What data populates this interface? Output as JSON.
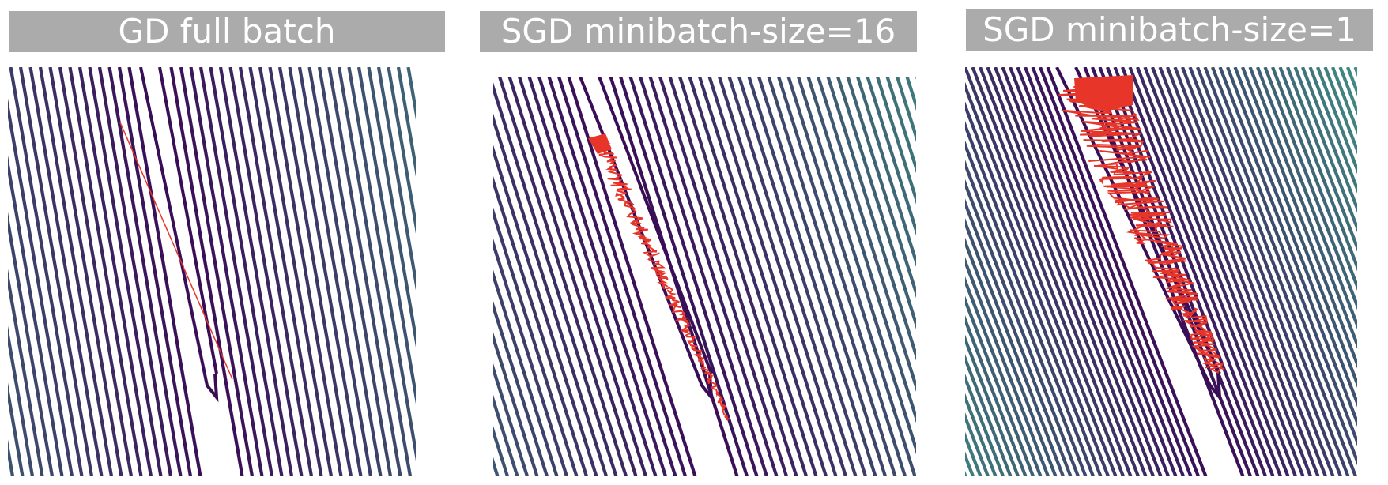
{
  "panels": [
    {
      "title": "GD full batch",
      "path_kind": "line"
    },
    {
      "title": "SGD minibatch-size=16",
      "path_kind": "noisy-narrow"
    },
    {
      "title": "SGD minibatch-size=1",
      "path_kind": "noisy-wide"
    }
  ],
  "colors": {
    "title_bg": "#ababab",
    "title_text": "#ffffff",
    "contour_inner": "#3a0d57",
    "contour_outer": "#41a58b",
    "path": "#e8352a"
  }
}
